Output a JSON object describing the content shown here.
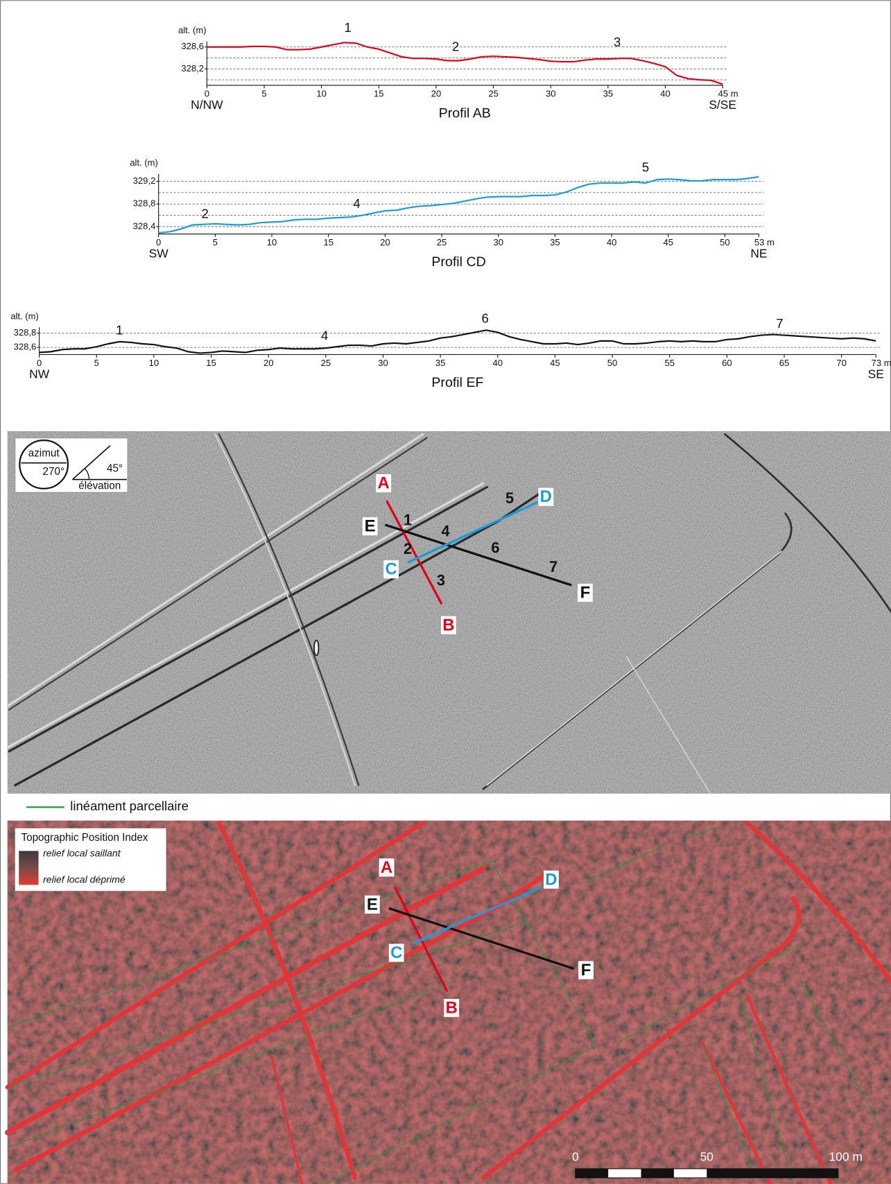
{
  "chart_data": [
    {
      "type": "line",
      "title": "Profil AB",
      "ylabel": "alt. (m)",
      "directions": [
        "N/NW",
        "S/SE"
      ],
      "color": "#e2001a",
      "x": [
        0,
        1,
        2,
        3,
        4,
        5,
        6,
        7,
        8,
        9,
        10,
        11,
        12,
        13,
        14,
        15,
        16,
        17,
        18,
        19,
        20,
        21,
        22,
        23,
        24,
        25,
        26,
        27,
        28,
        29,
        30,
        31,
        32,
        33,
        34,
        35,
        36,
        37,
        38,
        39,
        40,
        41,
        42,
        43,
        44,
        45
      ],
      "values": [
        328.6,
        328.6,
        328.6,
        328.6,
        328.61,
        328.61,
        328.6,
        328.55,
        328.55,
        328.56,
        328.6,
        328.64,
        328.68,
        328.67,
        328.6,
        328.56,
        328.49,
        328.42,
        328.39,
        328.39,
        328.38,
        328.35,
        328.35,
        328.38,
        328.42,
        328.43,
        328.42,
        328.41,
        328.39,
        328.37,
        328.34,
        328.33,
        328.33,
        328.36,
        328.38,
        328.38,
        328.39,
        328.39,
        328.35,
        328.3,
        328.24,
        328.08,
        328.02,
        328.0,
        327.99,
        327.92
      ],
      "xlim": [
        0,
        45
      ],
      "xticks": [
        0,
        5,
        10,
        15,
        20,
        25,
        30,
        35,
        40,
        {
          "value": 45,
          "label": "45 m"
        }
      ],
      "ylim": [
        327.9,
        328.7
      ],
      "yticks": [
        {
          "value": 328.6,
          "label": "328,6"
        },
        {
          "value": 328.2,
          "label": "328,2"
        }
      ],
      "ygrid": [
        328.6,
        328.4,
        328.2,
        328.0
      ],
      "annotations": [
        {
          "text": "1",
          "x": 12.3,
          "y": 328.94
        },
        {
          "text": "2",
          "x": 21.7,
          "y": 328.59
        },
        {
          "text": "3",
          "x": 35.8,
          "y": 328.67
        }
      ]
    },
    {
      "type": "line",
      "title": "Profil CD",
      "ylabel": "alt. (m)",
      "directions": [
        "SW",
        "NE"
      ],
      "color": "#1b9bd7",
      "x": [
        0,
        1,
        2,
        3,
        4,
        5,
        6,
        7,
        8,
        9,
        10,
        11,
        12,
        13,
        14,
        15,
        16,
        17,
        18,
        19,
        20,
        21,
        22,
        23,
        24,
        25,
        26,
        27,
        28,
        29,
        30,
        31,
        32,
        33,
        34,
        35,
        36,
        37,
        38,
        39,
        40,
        41,
        42,
        43,
        44,
        45,
        46,
        47,
        48,
        49,
        50,
        51,
        52,
        53
      ],
      "values": [
        328.29,
        328.31,
        328.36,
        328.43,
        328.44,
        328.45,
        328.44,
        328.43,
        328.44,
        328.47,
        328.48,
        328.49,
        328.52,
        328.53,
        328.53,
        328.55,
        328.56,
        328.57,
        328.6,
        328.64,
        328.68,
        328.69,
        328.73,
        328.76,
        328.77,
        328.79,
        328.81,
        328.85,
        328.89,
        328.92,
        328.93,
        328.93,
        328.93,
        328.95,
        328.95,
        328.96,
        329.01,
        329.09,
        329.15,
        329.17,
        329.17,
        329.17,
        329.19,
        329.17,
        329.23,
        329.24,
        329.23,
        329.21,
        329.21,
        329.23,
        329.23,
        329.23,
        329.25,
        329.28
      ],
      "xlim": [
        0,
        53
      ],
      "xticks": [
        0,
        5,
        10,
        15,
        20,
        25,
        30,
        35,
        40,
        45,
        50,
        {
          "value": 53,
          "label": "53 m"
        }
      ],
      "ylim": [
        328.27,
        329.33
      ],
      "yticks": [
        {
          "value": 329.2,
          "label": "329,2"
        },
        {
          "value": 328.8,
          "label": "328,8"
        },
        {
          "value": 328.4,
          "label": "328,4"
        }
      ],
      "ygrid": [
        329.2,
        329.0,
        328.8,
        328.6,
        328.4
      ],
      "annotations": [
        {
          "text": "2",
          "x": 4.1,
          "y": 328.61
        },
        {
          "text": "4",
          "x": 17.5,
          "y": 328.79
        },
        {
          "text": "5",
          "x": 43.0,
          "y": 329.43
        }
      ]
    },
    {
      "type": "line",
      "title": "Profil EF",
      "ylabel": "alt. (m)",
      "directions": [
        "NW",
        "SE"
      ],
      "color": "#111111",
      "x": [
        0,
        1,
        2,
        3,
        4,
        5,
        6,
        7,
        8,
        9,
        10,
        11,
        12,
        13,
        14,
        15,
        16,
        17,
        18,
        19,
        20,
        21,
        22,
        23,
        24,
        25,
        26,
        27,
        28,
        29,
        30,
        31,
        32,
        33,
        34,
        35,
        36,
        37,
        38,
        39,
        40,
        41,
        42,
        43,
        44,
        45,
        46,
        47,
        48,
        49,
        50,
        51,
        52,
        53,
        54,
        55,
        56,
        57,
        58,
        59,
        60,
        61,
        62,
        63,
        64,
        65,
        66,
        67,
        68,
        69,
        70,
        71,
        72,
        73
      ],
      "values": [
        328.53,
        328.54,
        328.57,
        328.58,
        328.58,
        328.61,
        328.65,
        328.68,
        328.67,
        328.65,
        328.64,
        328.61,
        328.59,
        328.54,
        328.52,
        328.53,
        328.55,
        328.54,
        328.53,
        328.56,
        328.57,
        328.59,
        328.58,
        328.58,
        328.58,
        328.59,
        328.61,
        328.63,
        328.63,
        328.62,
        328.65,
        328.66,
        328.65,
        328.67,
        328.69,
        328.73,
        328.75,
        328.78,
        328.81,
        328.84,
        328.81,
        328.75,
        328.71,
        328.68,
        328.65,
        328.65,
        328.66,
        328.64,
        328.66,
        328.69,
        328.69,
        328.65,
        328.65,
        328.66,
        328.68,
        328.69,
        328.68,
        328.69,
        328.68,
        328.68,
        328.71,
        328.72,
        328.75,
        328.77,
        328.78,
        328.77,
        328.76,
        328.75,
        328.74,
        328.73,
        328.72,
        328.73,
        328.72,
        328.69
      ],
      "xlim": [
        0,
        73
      ],
      "xticks": [
        0,
        5,
        10,
        15,
        20,
        25,
        30,
        35,
        40,
        45,
        50,
        55,
        60,
        65,
        70,
        {
          "value": 73,
          "label": "73 m"
        }
      ],
      "ylim": [
        328.5,
        328.88
      ],
      "yticks": [
        {
          "value": 328.8,
          "label": "328,8"
        },
        {
          "value": 328.6,
          "label": "328,6"
        }
      ],
      "ygrid": [
        328.8,
        328.6
      ],
      "annotations": [
        {
          "text": "1",
          "x": 7.0,
          "y": 328.83
        },
        {
          "text": "4",
          "x": 24.9,
          "y": 328.75
        },
        {
          "text": "6",
          "x": 38.9,
          "y": 328.99
        },
        {
          "text": "7",
          "x": 64.6,
          "y": 328.92
        }
      ]
    }
  ],
  "hillshade": {
    "azimuth_label": "azimut",
    "azimuth": "270°",
    "elevation": "45°",
    "elevation_label": "élévation",
    "section_labels": [
      "A",
      "B",
      "C",
      "D",
      "E",
      "F"
    ],
    "point_labels": [
      "1",
      "2",
      "3",
      "4",
      "5",
      "6",
      "7"
    ]
  },
  "legend": {
    "lineament": "linéament parcellaire"
  },
  "tpi": {
    "title": "Topographic Position Index",
    "high": "relief local saillant",
    "low": "relief local déprimé",
    "section_labels": [
      "A",
      "B",
      "C",
      "D",
      "E",
      "F"
    ]
  },
  "scale_bar": {
    "labels": [
      "0",
      "50",
      "100 m"
    ]
  }
}
